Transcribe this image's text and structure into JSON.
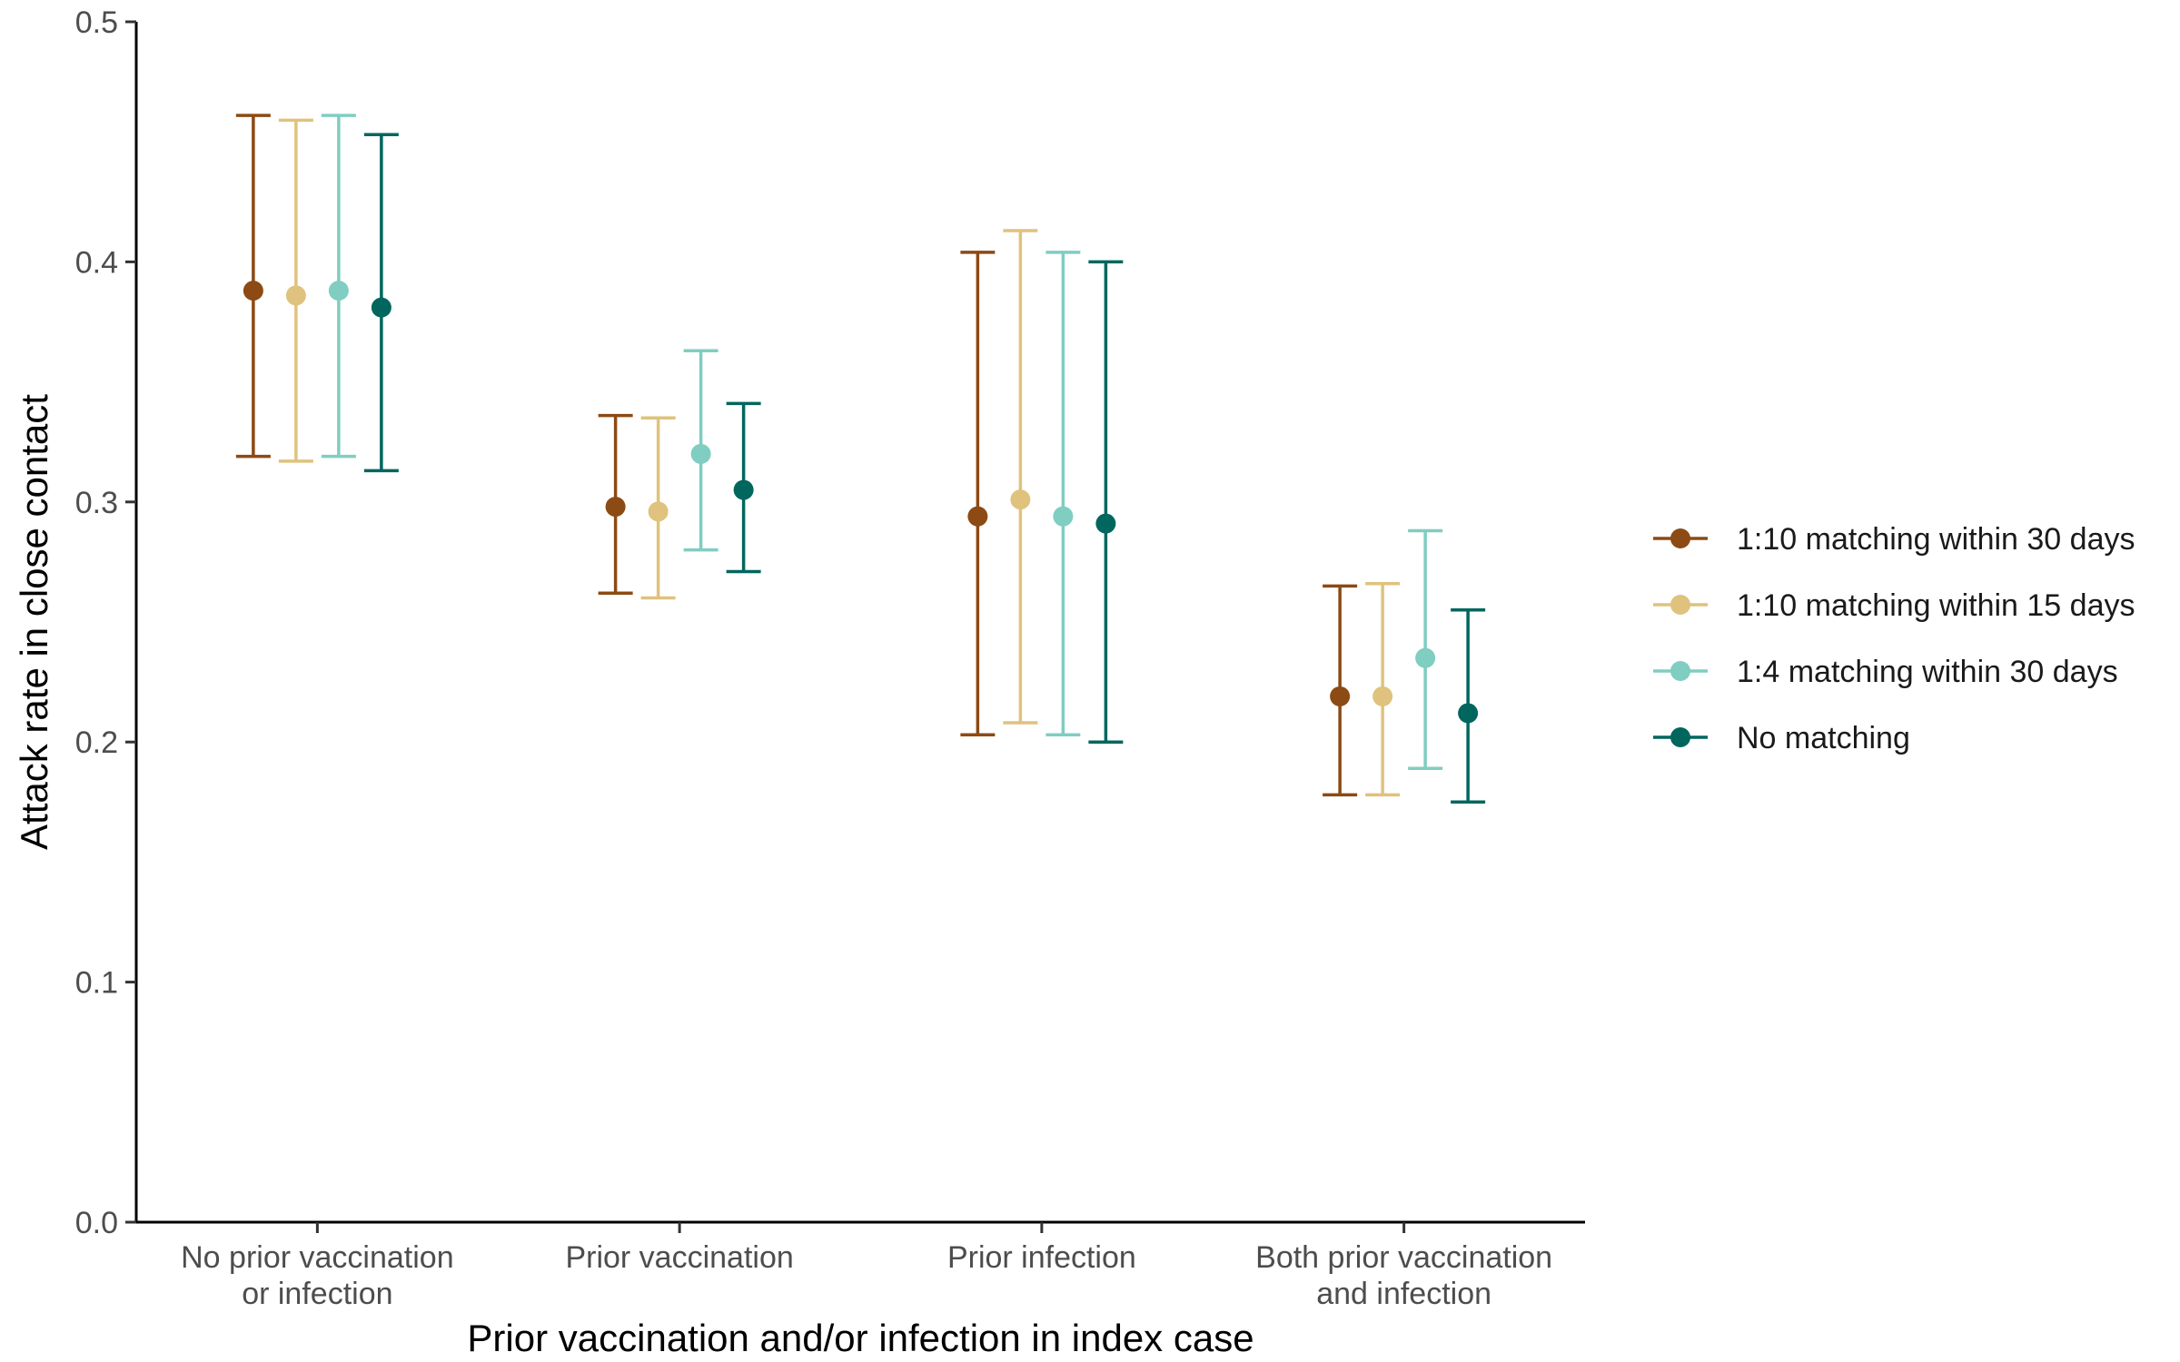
{
  "chart_data": {
    "type": "errorbar",
    "xlabel": "Prior vaccination and/or infection in index case",
    "ylabel": "Attack rate in close contact",
    "ylim": [
      0,
      0.5
    ],
    "yticks": [
      "0.0",
      "0.1",
      "0.2",
      "0.3",
      "0.4",
      "0.5"
    ],
    "grid": false,
    "legend_position": "right",
    "categories": [
      [
        "No prior vaccination",
        "or infection"
      ],
      [
        "Prior vaccination"
      ],
      [
        "Prior infection"
      ],
      [
        "Both prior vaccination",
        "and infection"
      ]
    ],
    "series": [
      {
        "name": "1:10 matching within 30 days",
        "color": "#8C4A14",
        "values": [
          0.388,
          0.298,
          0.294,
          0.219
        ],
        "lower": [
          0.319,
          0.262,
          0.203,
          0.178
        ],
        "upper": [
          0.461,
          0.336,
          0.404,
          0.265
        ]
      },
      {
        "name": "1:10 matching within 15 days",
        "color": "#DFC27D",
        "values": [
          0.386,
          0.296,
          0.301,
          0.219
        ],
        "lower": [
          0.317,
          0.26,
          0.208,
          0.178
        ],
        "upper": [
          0.459,
          0.335,
          0.413,
          0.266
        ]
      },
      {
        "name": "1:4 matching within 30 days",
        "color": "#80CDC1",
        "values": [
          0.388,
          0.32,
          0.294,
          0.235
        ],
        "lower": [
          0.319,
          0.28,
          0.203,
          0.189
        ],
        "upper": [
          0.461,
          0.363,
          0.404,
          0.288
        ]
      },
      {
        "name": "No matching",
        "color": "#01665E",
        "values": [
          0.381,
          0.305,
          0.291,
          0.212
        ],
        "lower": [
          0.313,
          0.271,
          0.2,
          0.175
        ],
        "upper": [
          0.453,
          0.341,
          0.4,
          0.255
        ]
      }
    ]
  }
}
